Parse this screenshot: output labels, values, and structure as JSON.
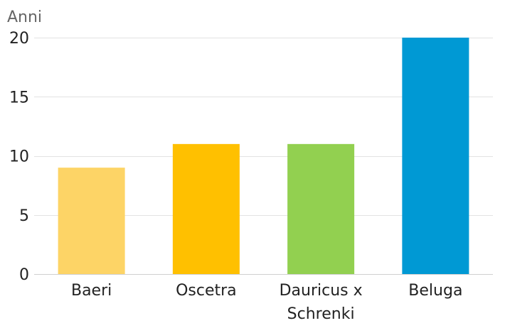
{
  "chart_data": {
    "type": "bar",
    "y_unit_label": "Anni",
    "categories": [
      [
        "Baeri"
      ],
      [
        "Oscetra"
      ],
      [
        "Dauricus x",
        "Schrenki"
      ],
      [
        "Beluga"
      ]
    ],
    "values": [
      9,
      11,
      11,
      20
    ],
    "colors": [
      "#fdd466",
      "#ffc000",
      "#92d050",
      "#0099d4"
    ],
    "yticks": [
      0,
      5,
      10,
      15,
      20
    ],
    "ylim": [
      0,
      20
    ],
    "grid": true,
    "legend": "none"
  }
}
